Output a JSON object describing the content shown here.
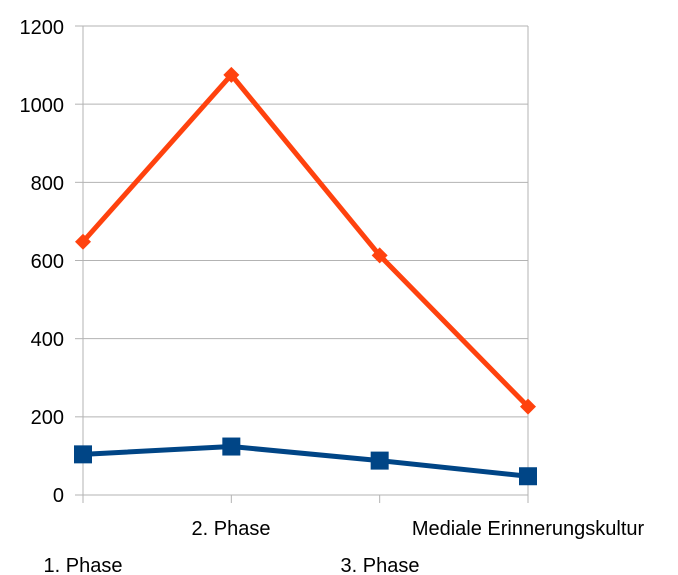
{
  "chart_data": {
    "type": "line",
    "categories": [
      "1. Phase",
      "2. Phase",
      "3. Phase",
      "Mediale Erinnerungskultur"
    ],
    "series": [
      {
        "values": [
          648,
          1075,
          613,
          226
        ],
        "color": "#ff420e",
        "marker": "diamond"
      },
      {
        "values": [
          104,
          124,
          88,
          48
        ],
        "color": "#004586",
        "marker": "square"
      }
    ],
    "ylim": [
      0,
      1200
    ],
    "yticks": [
      "0",
      "200",
      "400",
      "600",
      "800",
      "1000",
      "1200"
    ],
    "grid": true,
    "legend": "none"
  }
}
